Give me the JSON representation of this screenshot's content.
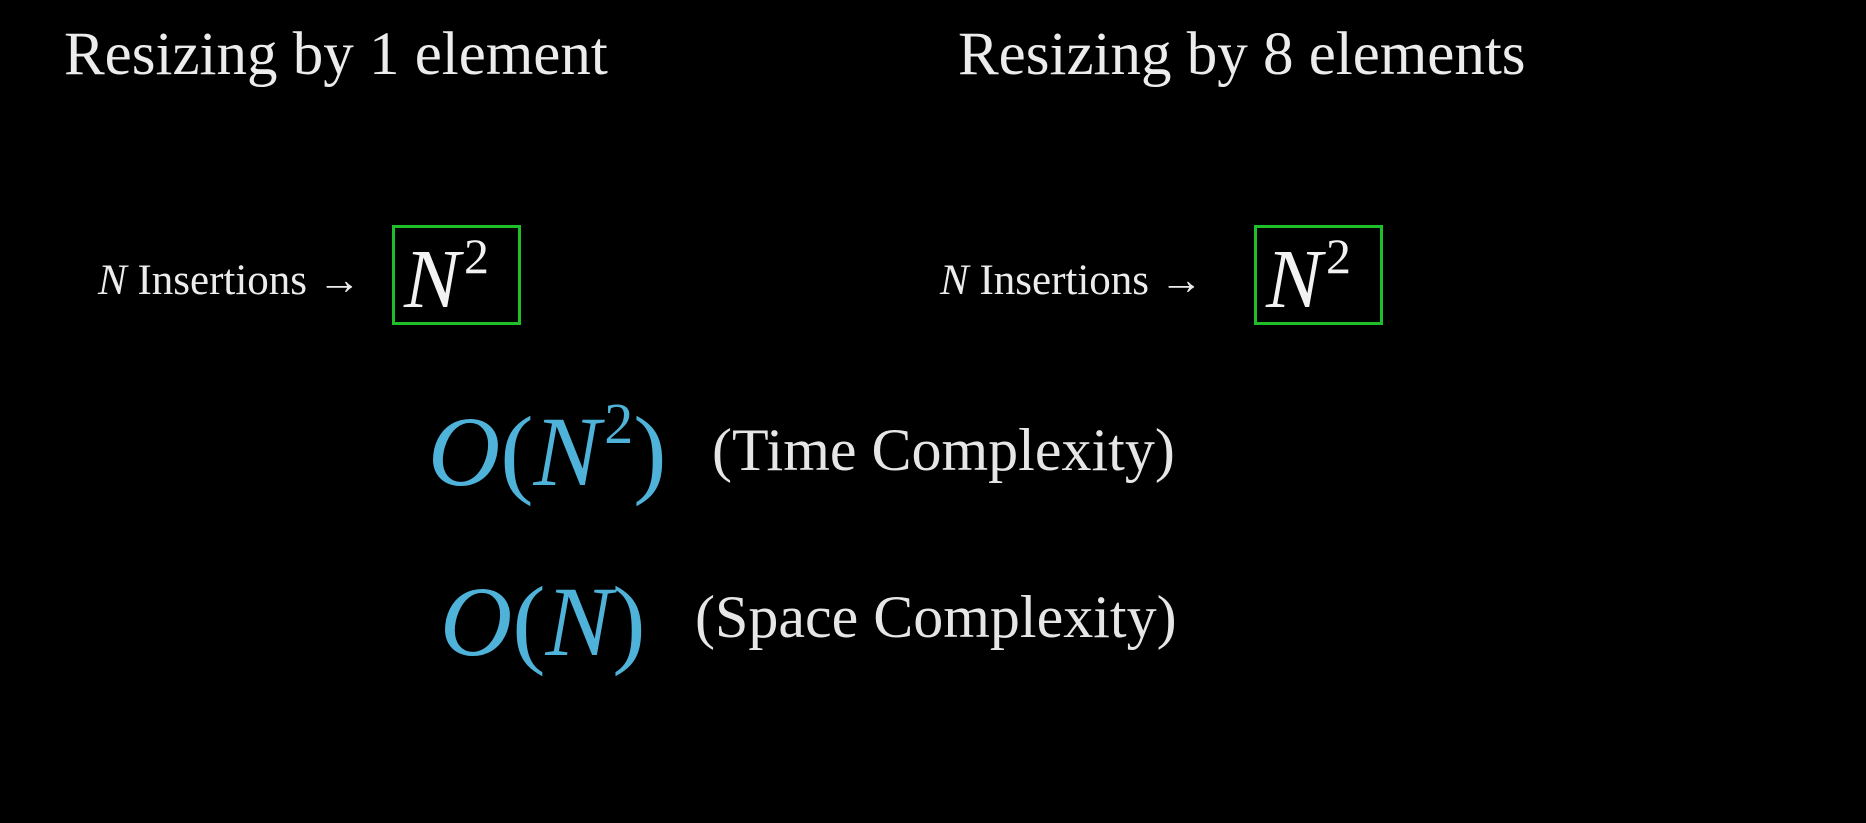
{
  "left": {
    "heading": "Resizing by 1 element",
    "insertion": {
      "var": "N",
      "label": "Insertions",
      "arrow": "→"
    },
    "result": {
      "base": "N",
      "exponent": "2"
    }
  },
  "right": {
    "heading": "Resizing by 8 elements",
    "insertion": {
      "var": "N",
      "label": "Insertions",
      "arrow": "→"
    },
    "result": {
      "base": "N",
      "exponent": "2"
    }
  },
  "time": {
    "big_o": "O",
    "open_paren": "(",
    "var": "N",
    "exponent": "2",
    "close_paren": ")",
    "label": "(Time Complexity)"
  },
  "space": {
    "big_o": "O",
    "open_paren": "(",
    "var": "N",
    "close_paren": ")",
    "label": "(Space Complexity)"
  },
  "colors": {
    "background": "#000000",
    "text": "#ececec",
    "box_border": "#1fbf2a",
    "complexity_accent": "#4fb3d9"
  }
}
